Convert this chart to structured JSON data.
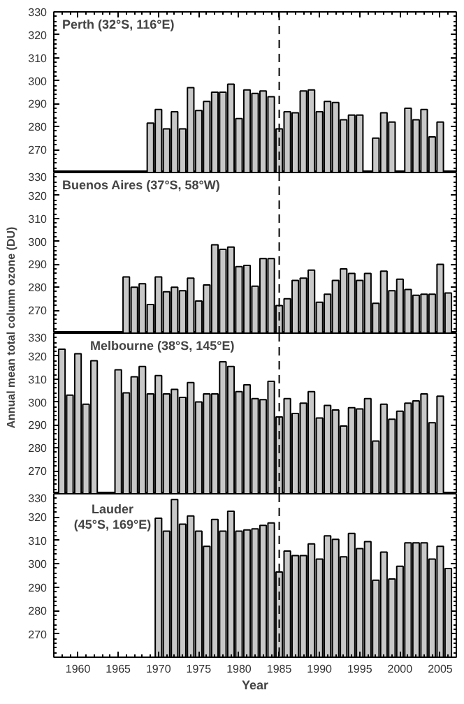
{
  "chart_data": [
    {
      "type": "bar",
      "title": "Perth (32°S, 116°E)",
      "color": "#c8c8c8",
      "xlim": [
        1957,
        2007
      ],
      "ylim": [
        260,
        330
      ],
      "xticks": [
        1960,
        1965,
        1970,
        1975,
        1980,
        1985,
        1990,
        1995,
        2000,
        2005
      ],
      "yticks": [
        270,
        280,
        290,
        300,
        310,
        320,
        330
      ],
      "tick_labels": "y",
      "ref_lines": [
        {
          "axis": "x",
          "value": 1985,
          "line_style": "dashed"
        }
      ],
      "x": [
        1969,
        1970,
        1971,
        1972,
        1973,
        1974,
        1975,
        1976,
        1977,
        1978,
        1979,
        1980,
        1981,
        1982,
        1983,
        1984,
        1985,
        1986,
        1987,
        1988,
        1989,
        1990,
        1991,
        1992,
        1993,
        1994,
        1995,
        1996,
        1997,
        1998,
        1999,
        2000,
        2001,
        2002,
        2003,
        2004,
        2005
      ],
      "values": [
        281.5,
        287.5,
        279,
        286.5,
        279,
        297,
        287,
        291,
        295,
        295,
        298.5,
        283.5,
        296,
        294.5,
        295.5,
        293,
        279,
        286.5,
        286,
        295.5,
        296,
        286.5,
        291,
        290.5,
        283,
        285,
        285,
        null,
        275,
        286,
        282,
        null,
        288,
        283,
        287.5,
        275.5,
        282
      ]
    },
    {
      "type": "bar",
      "title": "Buenos Aires (37°S, 58°W)",
      "ylabel": "Annual mean total column ozone (DU)",
      "color": "#c8c8c8",
      "xlim": [
        1957,
        2007
      ],
      "ylim": [
        260,
        330
      ],
      "xticks": [
        1960,
        1965,
        1970,
        1975,
        1980,
        1985,
        1990,
        1995,
        2000,
        2005
      ],
      "yticks": [
        270,
        280,
        290,
        300,
        310,
        320,
        330
      ],
      "tick_labels": "y",
      "ref_lines": [
        {
          "axis": "x",
          "value": 1985,
          "line_style": "dashed"
        }
      ],
      "x": [
        1966,
        1967,
        1968,
        1969,
        1970,
        1971,
        1972,
        1973,
        1974,
        1975,
        1976,
        1977,
        1978,
        1979,
        1980,
        1981,
        1982,
        1983,
        1984,
        1985,
        1986,
        1987,
        1988,
        1989,
        1990,
        1991,
        1992,
        1993,
        1994,
        1995,
        1996,
        1997,
        1998,
        1999,
        2000,
        2001,
        2002,
        2003,
        2004,
        2005,
        2006
      ],
      "values": [
        284.5,
        280,
        281.5,
        272.5,
        284.5,
        278,
        280,
        278.5,
        284,
        274,
        281,
        298.5,
        296.5,
        297.5,
        289,
        289.5,
        280.5,
        292.5,
        292.5,
        272,
        275,
        283,
        284,
        287.5,
        273.5,
        277,
        283,
        288,
        286,
        283,
        286,
        273,
        287,
        278.5,
        283.5,
        279,
        276.5,
        277,
        277,
        290,
        277.5
      ]
    },
    {
      "type": "bar",
      "title": "Melbourne (38°S, 145°E)",
      "color": "#c8c8c8",
      "xlim": [
        1957,
        2007
      ],
      "ylim": [
        260,
        330
      ],
      "xticks": [
        1960,
        1965,
        1970,
        1975,
        1980,
        1985,
        1990,
        1995,
        2000,
        2005
      ],
      "yticks": [
        270,
        280,
        290,
        300,
        310,
        320,
        330
      ],
      "tick_labels": "y",
      "ref_lines": [
        {
          "axis": "x",
          "value": 1985,
          "line_style": "dashed"
        }
      ],
      "x": [
        1958,
        1959,
        1960,
        1961,
        1962,
        1963,
        1964,
        1965,
        1966,
        1967,
        1968,
        1969,
        1970,
        1971,
        1972,
        1973,
        1974,
        1975,
        1976,
        1977,
        1978,
        1979,
        1980,
        1981,
        1982,
        1983,
        1984,
        1985,
        1986,
        1987,
        1988,
        1989,
        1990,
        1991,
        1992,
        1993,
        1994,
        1995,
        1996,
        1997,
        1998,
        1999,
        2000,
        2001,
        2002,
        2003,
        2004,
        2005
      ],
      "values": [
        323,
        303,
        321,
        299,
        318,
        null,
        null,
        314,
        304,
        311,
        315.5,
        303.5,
        311.5,
        303.5,
        305.5,
        302,
        308.5,
        300,
        303.5,
        303.5,
        317.5,
        315.5,
        304.5,
        307.5,
        301.5,
        301,
        309,
        293.5,
        301.5,
        295,
        299.5,
        304.5,
        293,
        298.5,
        296.5,
        289.5,
        297.5,
        297,
        301.5,
        283,
        299,
        292.5,
        296,
        299.5,
        300.5,
        303.5,
        291,
        302.5
      ]
    },
    {
      "type": "bar",
      "title": "Lauder\n(45°S, 169°E)",
      "xlabel": "Year",
      "color": "#c8c8c8",
      "xlim": [
        1957,
        2007
      ],
      "ylim": [
        260,
        330
      ],
      "xticks": [
        1960,
        1965,
        1970,
        1975,
        1980,
        1985,
        1990,
        1995,
        2000,
        2005
      ],
      "yticks": [
        270,
        280,
        290,
        300,
        310,
        320,
        330
      ],
      "ref_lines": [
        {
          "axis": "x",
          "value": 1985,
          "line_style": "dashed"
        }
      ],
      "x": [
        1970,
        1971,
        1972,
        1973,
        1974,
        1975,
        1976,
        1977,
        1978,
        1979,
        1980,
        1981,
        1982,
        1983,
        1984,
        1985,
        1986,
        1987,
        1988,
        1989,
        1990,
        1991,
        1992,
        1993,
        1994,
        1995,
        1996,
        1997,
        1998,
        1999,
        2000,
        2001,
        2002,
        2003,
        2004,
        2005,
        2006
      ],
      "values": [
        319.5,
        314,
        327.5,
        317,
        320.5,
        314,
        307.5,
        319,
        314,
        322.5,
        314,
        314.5,
        315,
        316.5,
        317.5,
        296.5,
        305.5,
        303.5,
        303.5,
        308.5,
        302,
        312,
        310.5,
        303,
        313,
        306.5,
        309.5,
        293,
        305,
        293.5,
        299,
        309,
        309,
        309,
        302,
        307.5,
        298
      ]
    }
  ]
}
